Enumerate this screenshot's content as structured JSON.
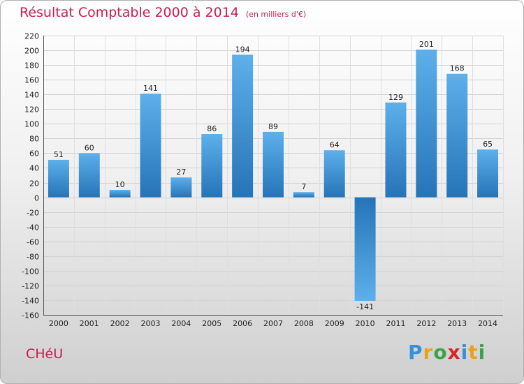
{
  "chart_data": {
    "type": "bar",
    "title": "Résultat Comptable 2000 à 2014",
    "unit": "(en milliers d'€)",
    "xlabel": "",
    "ylabel": "",
    "categories": [
      "2000",
      "2001",
      "2002",
      "2003",
      "2004",
      "2005",
      "2006",
      "2007",
      "2008",
      "2009",
      "2010",
      "2011",
      "2012",
      "2013",
      "2014"
    ],
    "values": [
      51,
      60,
      10,
      141,
      27,
      86,
      194,
      89,
      7,
      64,
      -141,
      129,
      201,
      168,
      65
    ],
    "value_labels": [
      "51",
      "60",
      "10",
      "141",
      "27",
      "86",
      "194",
      "89",
      "7",
      "64",
      "-141",
      "129",
      "201",
      "168",
      "65"
    ],
    "ylim": [
      -160,
      220
    ],
    "yticks": [
      220,
      200,
      180,
      160,
      140,
      120,
      100,
      80,
      60,
      40,
      20,
      0,
      -20,
      -40,
      -60,
      -80,
      -100,
      -120,
      -140,
      -160
    ],
    "grid": true,
    "legend": "none"
  },
  "footer": {
    "commune": "CHéU",
    "logo_letters": [
      {
        "char": "P",
        "color": "#3a8fd6"
      },
      {
        "char": "r",
        "color": "#e8a21c"
      },
      {
        "char": "o",
        "color": "#3aa34a"
      },
      {
        "char": "x",
        "color": "#d7262b"
      },
      {
        "char": "i",
        "color": "#3a8fd6"
      },
      {
        "char": "t",
        "color": "#e8a21c"
      },
      {
        "char": "i",
        "color": "#3aa34a"
      }
    ]
  }
}
